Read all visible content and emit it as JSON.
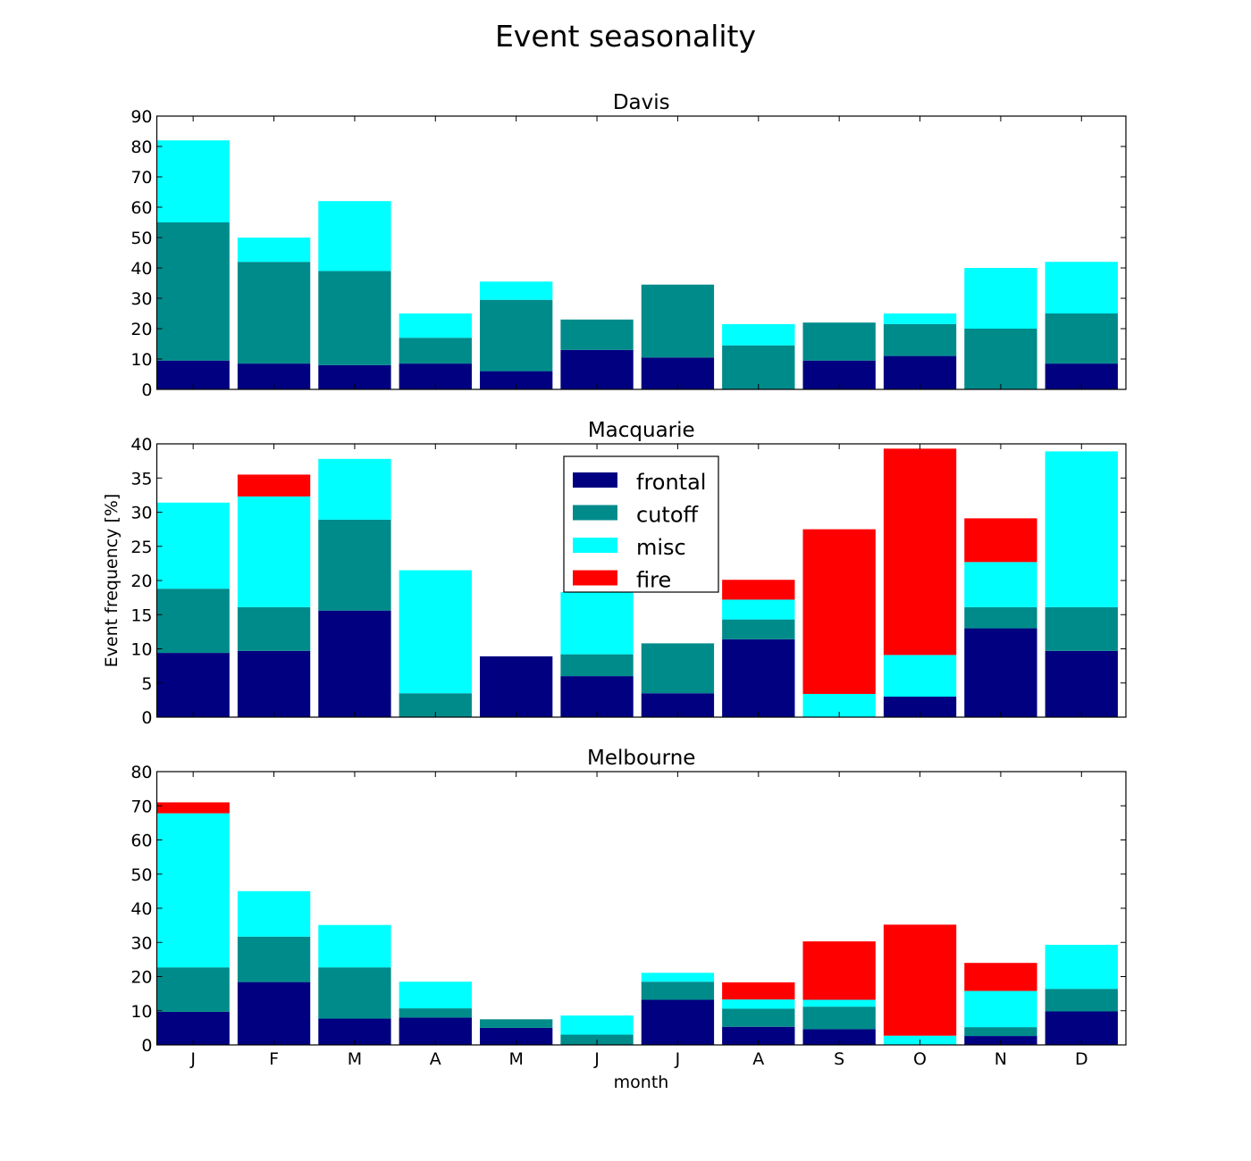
{
  "figure": {
    "title": "Event seasonality",
    "xlabel": "month",
    "ylabel": "Event frequency [%]"
  },
  "colors": {
    "frontal": "#000080",
    "cutoff": "#008b8b",
    "misc": "#00ffff",
    "fire": "#ff0000"
  },
  "legend": {
    "placement": "upper-center of middle panel",
    "entries": [
      "frontal",
      "cutoff",
      "misc",
      "fire"
    ]
  },
  "chart_data": [
    {
      "type": "bar",
      "stacked": true,
      "title": "Davis",
      "categories": [
        "J",
        "F",
        "M",
        "A",
        "M",
        "J",
        "J",
        "A",
        "S",
        "O",
        "N",
        "D"
      ],
      "ylim": [
        0,
        90
      ],
      "yticks": [
        0,
        10,
        20,
        30,
        40,
        50,
        60,
        70,
        80,
        90
      ],
      "series": [
        {
          "name": "frontal",
          "values": [
            9.5,
            8.5,
            8,
            8.5,
            6,
            13,
            10.5,
            0,
            9.5,
            11,
            0,
            8.5
          ]
        },
        {
          "name": "cutoff",
          "values": [
            45.5,
            33.5,
            31,
            8.5,
            23.5,
            10,
            24,
            14.5,
            12.5,
            10.5,
            20,
            16.5
          ]
        },
        {
          "name": "misc",
          "values": [
            27,
            8,
            23,
            8,
            6,
            0,
            0,
            7,
            0,
            3.5,
            20,
            17
          ]
        },
        {
          "name": "fire",
          "values": [
            0,
            0,
            0,
            0,
            0,
            0,
            0,
            0,
            0,
            0,
            0,
            0
          ]
        }
      ]
    },
    {
      "type": "bar",
      "stacked": true,
      "title": "Macquarie",
      "categories": [
        "J",
        "F",
        "M",
        "A",
        "M",
        "J",
        "J",
        "A",
        "S",
        "O",
        "N",
        "D"
      ],
      "ylim": [
        0,
        40
      ],
      "yticks": [
        0,
        5,
        10,
        15,
        20,
        25,
        30,
        35,
        40
      ],
      "series": [
        {
          "name": "frontal",
          "values": [
            9.4,
            9.7,
            15.6,
            0,
            8.9,
            6,
            3.5,
            11.4,
            0,
            3,
            13,
            9.7
          ]
        },
        {
          "name": "cutoff",
          "values": [
            9.4,
            6.4,
            13.3,
            3.5,
            0,
            3.2,
            7.3,
            2.9,
            0,
            0,
            3.1,
            6.4
          ]
        },
        {
          "name": "misc",
          "values": [
            12.6,
            16.2,
            8.9,
            18,
            0,
            9.1,
            0,
            2.9,
            3.4,
            6.1,
            6.6,
            22.8
          ]
        },
        {
          "name": "fire",
          "values": [
            0,
            3.2,
            0,
            0,
            0,
            0,
            0,
            2.9,
            24.1,
            30.2,
            6.4,
            0
          ]
        }
      ]
    },
    {
      "type": "bar",
      "stacked": true,
      "title": "Melbourne",
      "categories": [
        "J",
        "F",
        "M",
        "A",
        "M",
        "J",
        "J",
        "A",
        "S",
        "O",
        "N",
        "D"
      ],
      "ylim": [
        0,
        80
      ],
      "yticks": [
        0,
        10,
        20,
        30,
        40,
        50,
        60,
        70,
        80
      ],
      "series": [
        {
          "name": "frontal",
          "values": [
            9.7,
            18.4,
            7.7,
            8,
            5,
            0,
            13.2,
            5.3,
            4.6,
            0,
            2.6,
            9.8
          ]
        },
        {
          "name": "cutoff",
          "values": [
            13,
            13.3,
            15,
            2.7,
            2.5,
            3,
            5.3,
            5.3,
            6.6,
            0,
            2.6,
            6.6
          ]
        },
        {
          "name": "misc",
          "values": [
            45.1,
            13.3,
            12.4,
            7.8,
            0,
            5.6,
            2.6,
            2.7,
            2,
            2.7,
            10.6,
            12.9
          ]
        },
        {
          "name": "fire",
          "values": [
            3.2,
            0,
            0,
            0,
            0,
            0,
            0,
            5,
            17.1,
            32.5,
            8.2,
            0
          ]
        }
      ]
    }
  ]
}
